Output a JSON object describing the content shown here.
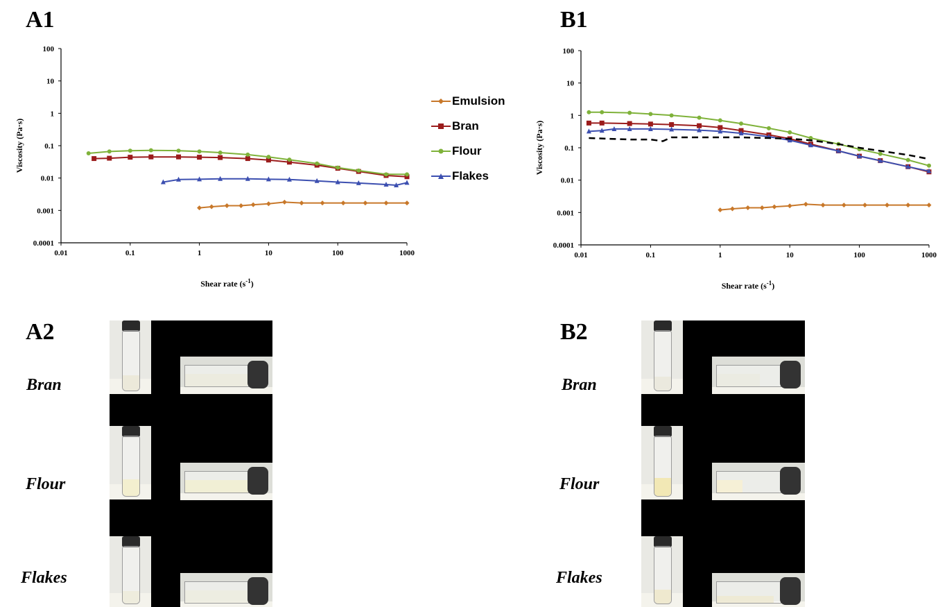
{
  "panels": {
    "a1": "A1",
    "b1": "B1",
    "a2": "A2",
    "b2": "B2"
  },
  "legend": [
    {
      "label": "Emulsion",
      "color": "#c8782a",
      "marker": "diamond"
    },
    {
      "label": "Bran",
      "color": "#9b1c1c",
      "marker": "square"
    },
    {
      "label": "Flour",
      "color": "#7fb23a",
      "marker": "circle"
    },
    {
      "label": "Flakes",
      "color": "#3c4fb0",
      "marker": "triangle"
    }
  ],
  "chart_data": [
    {
      "type": "line",
      "panel": "A1",
      "xlabel": "Shear rate (s-1)",
      "ylabel": "Viscosity (Pa·s)",
      "xscale": "log",
      "yscale": "log",
      "xlim": [
        0.01,
        1000
      ],
      "ylim": [
        0.0001,
        100
      ],
      "xticks": [
        "0.01",
        "0.1",
        "1",
        "10",
        "100",
        "1000"
      ],
      "yticks": [
        "0.0001",
        "0.001",
        "0.01",
        "0.1",
        "1",
        "10",
        "100"
      ],
      "legend_position": "right",
      "series": [
        {
          "name": "Emulsion",
          "color": "#c8782a",
          "marker": "diamond",
          "x": [
            1,
            1.5,
            2.5,
            4,
            6,
            10,
            17,
            30,
            60,
            120,
            250,
            500,
            1000
          ],
          "y": [
            0.0012,
            0.0013,
            0.0014,
            0.0014,
            0.0015,
            0.0016,
            0.0018,
            0.0017,
            0.0017,
            0.0017,
            0.0017,
            0.0017,
            0.0017
          ]
        },
        {
          "name": "Bran",
          "color": "#9b1c1c",
          "marker": "square",
          "x": [
            0.03,
            0.05,
            0.1,
            0.2,
            0.5,
            1,
            2,
            5,
            10,
            20,
            50,
            100,
            200,
            500,
            1000
          ],
          "y": [
            0.04,
            0.041,
            0.044,
            0.045,
            0.045,
            0.044,
            0.043,
            0.04,
            0.036,
            0.031,
            0.025,
            0.02,
            0.016,
            0.012,
            0.011
          ]
        },
        {
          "name": "Flour",
          "color": "#7fb23a",
          "marker": "circle",
          "x": [
            0.025,
            0.05,
            0.1,
            0.2,
            0.5,
            1,
            2,
            5,
            10,
            20,
            50,
            100,
            200,
            500,
            1000
          ],
          "y": [
            0.058,
            0.066,
            0.07,
            0.072,
            0.07,
            0.066,
            0.061,
            0.053,
            0.045,
            0.037,
            0.028,
            0.021,
            0.017,
            0.013,
            0.013
          ]
        },
        {
          "name": "Flakes",
          "color": "#3c4fb0",
          "marker": "triangle",
          "x": [
            0.3,
            0.5,
            1,
            2,
            5,
            10,
            20,
            50,
            100,
            200,
            500,
            700,
            1000
          ],
          "y": [
            0.0075,
            0.009,
            0.0092,
            0.0095,
            0.0095,
            0.0092,
            0.009,
            0.0082,
            0.0075,
            0.007,
            0.0063,
            0.006,
            0.0072
          ]
        }
      ]
    },
    {
      "type": "line",
      "panel": "B1",
      "xlabel": "Shear rate (s-1)",
      "ylabel": "Viscosity (Pa·s)",
      "xscale": "log",
      "yscale": "log",
      "xlim": [
        0.01,
        1000
      ],
      "ylim": [
        0.0001,
        100
      ],
      "xticks": [
        "0.01",
        "0.1",
        "1",
        "10",
        "100",
        "1000"
      ],
      "yticks": [
        "0.0001",
        "0.001",
        "0.01",
        "0.1",
        "1",
        "10",
        "100"
      ],
      "series": [
        {
          "name": "Emulsion",
          "color": "#c8782a",
          "marker": "diamond",
          "x": [
            1,
            1.5,
            2.5,
            4,
            6,
            10,
            17,
            30,
            60,
            120,
            250,
            500,
            1000
          ],
          "y": [
            0.0012,
            0.0013,
            0.0014,
            0.0014,
            0.0015,
            0.0016,
            0.0018,
            0.0017,
            0.0017,
            0.0017,
            0.0017,
            0.0017,
            0.0017
          ]
        },
        {
          "name": "Bran",
          "color": "#9b1c1c",
          "marker": "square",
          "x": [
            0.013,
            0.02,
            0.05,
            0.1,
            0.2,
            0.5,
            1,
            2,
            5,
            10,
            20,
            50,
            100,
            200,
            500,
            1000
          ],
          "y": [
            0.58,
            0.58,
            0.56,
            0.54,
            0.52,
            0.48,
            0.42,
            0.34,
            0.25,
            0.19,
            0.13,
            0.08,
            0.055,
            0.04,
            0.026,
            0.018
          ]
        },
        {
          "name": "Flour",
          "color": "#7fb23a",
          "marker": "circle",
          "x": [
            0.013,
            0.02,
            0.05,
            0.1,
            0.2,
            0.5,
            1,
            2,
            5,
            10,
            20,
            50,
            100,
            200,
            500,
            1000
          ],
          "y": [
            1.25,
            1.25,
            1.2,
            1.1,
            1.0,
            0.85,
            0.7,
            0.56,
            0.4,
            0.3,
            0.2,
            0.13,
            0.09,
            0.065,
            0.042,
            0.028
          ]
        },
        {
          "name": "Flakes",
          "color": "#3c4fb0",
          "marker": "triangle",
          "x": [
            0.013,
            0.02,
            0.03,
            0.05,
            0.1,
            0.2,
            0.5,
            1,
            2,
            5,
            10,
            20,
            50,
            100,
            200,
            500,
            1000
          ],
          "y": [
            0.32,
            0.34,
            0.38,
            0.38,
            0.38,
            0.37,
            0.35,
            0.32,
            0.28,
            0.22,
            0.17,
            0.12,
            0.08,
            0.055,
            0.04,
            0.026,
            0.019
          ]
        },
        {
          "name": "",
          "color": "#000000",
          "marker": "none",
          "dashed": true,
          "x": [
            0.013,
            0.05,
            0.1,
            0.15,
            0.2,
            0.5,
            1,
            2,
            5,
            10,
            20,
            50,
            100,
            200,
            500,
            1000
          ],
          "y": [
            0.2,
            0.18,
            0.18,
            0.16,
            0.21,
            0.21,
            0.21,
            0.21,
            0.2,
            0.19,
            0.17,
            0.13,
            0.1,
            0.08,
            0.06,
            0.045
          ]
        }
      ]
    }
  ],
  "photos": {
    "a2": [
      {
        "label": "Bran",
        "fill": "#ece9da"
      },
      {
        "label": "Flour",
        "fill": "#f3efcf"
      },
      {
        "label": "Flakes",
        "fill": "#eeecdd"
      }
    ],
    "b2": [
      {
        "label": "Bran",
        "fill": "#ebe9de"
      },
      {
        "label": "Flour",
        "fill": "#f2e8b5"
      },
      {
        "label": "Flakes",
        "fill": "#efe9cf"
      }
    ]
  }
}
